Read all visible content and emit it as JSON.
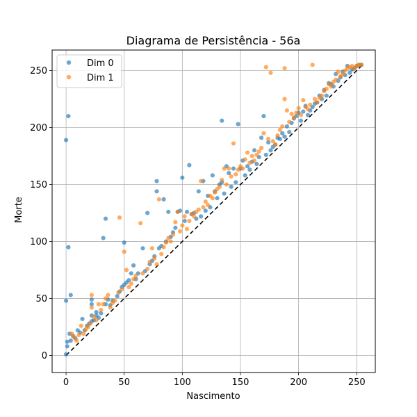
{
  "chart_data": {
    "type": "scatter",
    "title": "Diagrama de Persistência - 56a",
    "xlabel": "Nascimento",
    "ylabel": "Morte",
    "xlim": [
      -12,
      266
    ],
    "ylim": [
      -15,
      268
    ],
    "xticks": [
      0,
      50,
      100,
      150,
      200,
      250
    ],
    "yticks": [
      0,
      50,
      100,
      150,
      200,
      250
    ],
    "grid": true,
    "legend_position": "top-left",
    "diagonal": {
      "style": "dashed",
      "color": "#000000",
      "from": 0,
      "to": 255
    },
    "series": [
      {
        "name": "Dim 0",
        "color": "#1f77b4",
        "points": [
          [
            0,
            1
          ],
          [
            0,
            48
          ],
          [
            0,
            189
          ],
          [
            1,
            8
          ],
          [
            1,
            12
          ],
          [
            2,
            95
          ],
          [
            2,
            210
          ],
          [
            3,
            19
          ],
          [
            4,
            53
          ],
          [
            4,
            13
          ],
          [
            6,
            17
          ],
          [
            8,
            15
          ],
          [
            10,
            22
          ],
          [
            12,
            20
          ],
          [
            14,
            32
          ],
          [
            16,
            22
          ],
          [
            18,
            26
          ],
          [
            20,
            28
          ],
          [
            22,
            30
          ],
          [
            22,
            35
          ],
          [
            22,
            45
          ],
          [
            22,
            49
          ],
          [
            24,
            31
          ],
          [
            26,
            35
          ],
          [
            26,
            38
          ],
          [
            28,
            33
          ],
          [
            30,
            37
          ],
          [
            32,
            103
          ],
          [
            34,
            120
          ],
          [
            34,
            45
          ],
          [
            36,
            49
          ],
          [
            38,
            44
          ],
          [
            40,
            48
          ],
          [
            44,
            52
          ],
          [
            46,
            56
          ],
          [
            48,
            60
          ],
          [
            50,
            99
          ],
          [
            50,
            62
          ],
          [
            52,
            64
          ],
          [
            54,
            66
          ],
          [
            56,
            72
          ],
          [
            58,
            79
          ],
          [
            60,
            67
          ],
          [
            62,
            72
          ],
          [
            66,
            94
          ],
          [
            68,
            74
          ],
          [
            70,
            125
          ],
          [
            72,
            80
          ],
          [
            74,
            83
          ],
          [
            76,
            87
          ],
          [
            78,
            153
          ],
          [
            78,
            144
          ],
          [
            80,
            94
          ],
          [
            82,
            96
          ],
          [
            84,
            137
          ],
          [
            86,
            100
          ],
          [
            88,
            126
          ],
          [
            90,
            104
          ],
          [
            92,
            108
          ],
          [
            94,
            112
          ],
          [
            96,
            126
          ],
          [
            98,
            127
          ],
          [
            100,
            156
          ],
          [
            102,
            118
          ],
          [
            104,
            126
          ],
          [
            106,
            167
          ],
          [
            108,
            124
          ],
          [
            110,
            125
          ],
          [
            112,
            120
          ],
          [
            114,
            144
          ],
          [
            116,
            122
          ],
          [
            118,
            153
          ],
          [
            120,
            127
          ],
          [
            122,
            140
          ],
          [
            124,
            130
          ],
          [
            126,
            158
          ],
          [
            128,
            144
          ],
          [
            130,
            138
          ],
          [
            132,
            150
          ],
          [
            134,
            152
          ],
          [
            134,
            206
          ],
          [
            136,
            142
          ],
          [
            138,
            166
          ],
          [
            140,
            160
          ],
          [
            142,
            148
          ],
          [
            144,
            164
          ],
          [
            146,
            152
          ],
          [
            148,
            203
          ],
          [
            150,
            164
          ],
          [
            152,
            171
          ],
          [
            154,
            158
          ],
          [
            156,
            166
          ],
          [
            158,
            163
          ],
          [
            160,
            170
          ],
          [
            162,
            180
          ],
          [
            164,
            168
          ],
          [
            166,
            174
          ],
          [
            168,
            191
          ],
          [
            170,
            210
          ],
          [
            172,
            176
          ],
          [
            174,
            187
          ],
          [
            176,
            180
          ],
          [
            178,
            183
          ],
          [
            180,
            185
          ],
          [
            182,
            191
          ],
          [
            184,
            190
          ],
          [
            186,
            195
          ],
          [
            188,
            192
          ],
          [
            190,
            201
          ],
          [
            192,
            196
          ],
          [
            194,
            204
          ],
          [
            196,
            208
          ],
          [
            198,
            210
          ],
          [
            200,
            213
          ],
          [
            202,
            206
          ],
          [
            204,
            214
          ],
          [
            206,
            219
          ],
          [
            208,
            211
          ],
          [
            210,
            215
          ],
          [
            212,
            218
          ],
          [
            214,
            221
          ],
          [
            216,
            222
          ],
          [
            218,
            228
          ],
          [
            220,
            225
          ],
          [
            222,
            233
          ],
          [
            224,
            228
          ],
          [
            226,
            239
          ],
          [
            228,
            238
          ],
          [
            230,
            236
          ],
          [
            232,
            247
          ],
          [
            234,
            241
          ],
          [
            236,
            244
          ],
          [
            238,
            249
          ],
          [
            240,
            246
          ],
          [
            242,
            254
          ],
          [
            244,
            248
          ],
          [
            246,
            251
          ],
          [
            248,
            252
          ],
          [
            250,
            254
          ],
          [
            252,
            255
          ],
          [
            254,
            255
          ]
        ]
      },
      {
        "name": "Dim 1",
        "color": "#ff7f0e",
        "points": [
          [
            5,
            19
          ],
          [
            7,
            16
          ],
          [
            9,
            13
          ],
          [
            11,
            18
          ],
          [
            13,
            26
          ],
          [
            15,
            19
          ],
          [
            17,
            23
          ],
          [
            19,
            25
          ],
          [
            21,
            28
          ],
          [
            22,
            42
          ],
          [
            22,
            53
          ],
          [
            24,
            34
          ],
          [
            26,
            31
          ],
          [
            28,
            45
          ],
          [
            30,
            40
          ],
          [
            32,
            45
          ],
          [
            34,
            50
          ],
          [
            36,
            53
          ],
          [
            38,
            42
          ],
          [
            40,
            46
          ],
          [
            42,
            48
          ],
          [
            45,
            55
          ],
          [
            46,
            121
          ],
          [
            48,
            58
          ],
          [
            50,
            91
          ],
          [
            52,
            75
          ],
          [
            54,
            60
          ],
          [
            56,
            63
          ],
          [
            58,
            67
          ],
          [
            60,
            70
          ],
          [
            64,
            116
          ],
          [
            66,
            72
          ],
          [
            70,
            76
          ],
          [
            72,
            82
          ],
          [
            74,
            94
          ],
          [
            76,
            85
          ],
          [
            78,
            80
          ],
          [
            80,
            137
          ],
          [
            82,
            89
          ],
          [
            84,
            95
          ],
          [
            86,
            99
          ],
          [
            88,
            103
          ],
          [
            90,
            100
          ],
          [
            92,
            106
          ],
          [
            94,
            117
          ],
          [
            96,
            126
          ],
          [
            98,
            109
          ],
          [
            100,
            114
          ],
          [
            102,
            122
          ],
          [
            104,
            111
          ],
          [
            106,
            118
          ],
          [
            108,
            124
          ],
          [
            110,
            122
          ],
          [
            112,
            126
          ],
          [
            114,
            128
          ],
          [
            116,
            153
          ],
          [
            118,
            130
          ],
          [
            120,
            135
          ],
          [
            122,
            132
          ],
          [
            124,
            140
          ],
          [
            126,
            138
          ],
          [
            128,
            143
          ],
          [
            130,
            146
          ],
          [
            132,
            148
          ],
          [
            134,
            154
          ],
          [
            136,
            164
          ],
          [
            138,
            150
          ],
          [
            140,
            164
          ],
          [
            142,
            157
          ],
          [
            144,
            186
          ],
          [
            146,
            159
          ],
          [
            148,
            163
          ],
          [
            150,
            166
          ],
          [
            152,
            164
          ],
          [
            154,
            172
          ],
          [
            156,
            178
          ],
          [
            158,
            169
          ],
          [
            160,
            175
          ],
          [
            162,
            171
          ],
          [
            164,
            176
          ],
          [
            166,
            179
          ],
          [
            168,
            182
          ],
          [
            170,
            195
          ],
          [
            172,
            253
          ],
          [
            174,
            190
          ],
          [
            176,
            248
          ],
          [
            178,
            188
          ],
          [
            180,
            185
          ],
          [
            182,
            193
          ],
          [
            184,
            198
          ],
          [
            186,
            201
          ],
          [
            188,
            252
          ],
          [
            188,
            225
          ],
          [
            190,
            215
          ],
          [
            192,
            205
          ],
          [
            194,
            212
          ],
          [
            196,
            209
          ],
          [
            198,
            213
          ],
          [
            200,
            217
          ],
          [
            202,
            211
          ],
          [
            204,
            224
          ],
          [
            206,
            218
          ],
          [
            208,
            216
          ],
          [
            210,
            220
          ],
          [
            212,
            255
          ],
          [
            214,
            225
          ],
          [
            216,
            222
          ],
          [
            218,
            226
          ],
          [
            220,
            228
          ],
          [
            222,
            232
          ],
          [
            224,
            234
          ],
          [
            226,
            238
          ],
          [
            228,
            236
          ],
          [
            230,
            240
          ],
          [
            232,
            242
          ],
          [
            234,
            249
          ],
          [
            236,
            245
          ],
          [
            238,
            247
          ],
          [
            240,
            250
          ],
          [
            242,
            252
          ],
          [
            244,
            253
          ],
          [
            246,
            254
          ],
          [
            248,
            252
          ],
          [
            250,
            254
          ],
          [
            252,
            255
          ],
          [
            254,
            255
          ]
        ]
      }
    ]
  }
}
